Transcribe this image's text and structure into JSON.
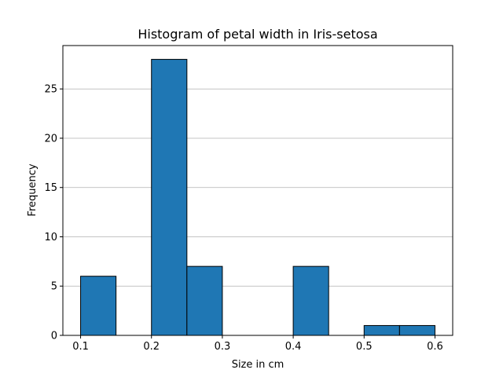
{
  "chart_data": {
    "type": "bar",
    "title": "Histogram of petal width in Iris-setosa",
    "xlabel": "Size in cm",
    "ylabel": "Frequency",
    "bins": [
      {
        "start": 0.1,
        "end": 0.15,
        "count": 6
      },
      {
        "start": 0.15,
        "end": 0.2,
        "count": 0
      },
      {
        "start": 0.2,
        "end": 0.25,
        "count": 28
      },
      {
        "start": 0.25,
        "end": 0.3,
        "count": 7
      },
      {
        "start": 0.3,
        "end": 0.35,
        "count": 0
      },
      {
        "start": 0.35,
        "end": 0.4,
        "count": 0
      },
      {
        "start": 0.4,
        "end": 0.45,
        "count": 7
      },
      {
        "start": 0.45,
        "end": 0.5,
        "count": 0
      },
      {
        "start": 0.5,
        "end": 0.55,
        "count": 1
      },
      {
        "start": 0.55,
        "end": 0.6,
        "count": 1
      }
    ],
    "xlim": [
      0.075,
      0.625
    ],
    "ylim": [
      0,
      29.4
    ],
    "xticks": [
      0.1,
      0.2,
      0.3,
      0.4,
      0.5,
      0.6
    ],
    "xtick_labels": [
      "0.1",
      "0.2",
      "0.3",
      "0.4",
      "0.5",
      "0.6"
    ],
    "yticks": [
      0,
      5,
      10,
      15,
      20,
      25
    ],
    "ytick_labels": [
      "0",
      "5",
      "10",
      "15",
      "20",
      "25"
    ],
    "grid": "y",
    "bar_color": "#1f77b4",
    "edge_color": "#000000"
  }
}
